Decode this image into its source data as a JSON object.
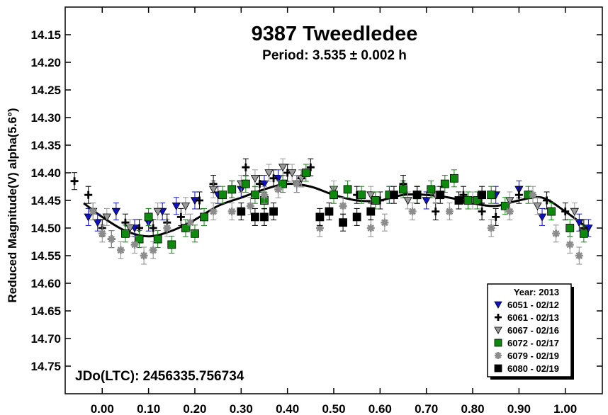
{
  "chart_data": {
    "type": "scatter",
    "title": "9387 Tweedledee",
    "subtitle": "Period: 3.535 ± 0.002 h",
    "xlabel": "",
    "ylabel": "Reduced Magnitude(V) alpha(5.6°)",
    "annotation": "JDo(LTC): 2456335.756734",
    "xlim": [
      -0.08,
      1.08
    ],
    "ylim": [
      14.8,
      14.1
    ],
    "y_inverted": true,
    "x_ticks": [
      "0.00",
      "0.10",
      "0.20",
      "0.30",
      "0.40",
      "0.50",
      "0.60",
      "0.70",
      "0.80",
      "0.90",
      "1.00"
    ],
    "y_ticks": [
      "14.15",
      "14.20",
      "14.25",
      "14.30",
      "14.35",
      "14.40",
      "14.45",
      "14.50",
      "14.55",
      "14.60",
      "14.65",
      "14.70",
      "14.75"
    ],
    "legend": {
      "title": "Year: 2013",
      "placement": "bottom-right",
      "entries": [
        {
          "label": "6051 - 02/12",
          "marker": "triangle",
          "color": "#1010c8"
        },
        {
          "label": "6061 - 02/13",
          "marker": "plus",
          "color": "#000000"
        },
        {
          "label": "6067 - 02/16",
          "marker": "triangle",
          "color": "#9a9a9a"
        },
        {
          "label": "6072 - 02/17",
          "marker": "square",
          "color": "#0d8a0d"
        },
        {
          "label": "6079 - 02/19",
          "marker": "asterisk",
          "color": "#8c8c8c"
        },
        {
          "label": "6080 - 02/19",
          "marker": "square",
          "color": "#000000"
        }
      ]
    },
    "fit_curve": {
      "x": [
        -0.04,
        0.0,
        0.05,
        0.1,
        0.15,
        0.2,
        0.25,
        0.3,
        0.35,
        0.4,
        0.45,
        0.5,
        0.55,
        0.6,
        0.65,
        0.7,
        0.75,
        0.8,
        0.85,
        0.9,
        0.95,
        1.0,
        1.04
      ],
      "y": [
        14.455,
        14.48,
        14.505,
        14.515,
        14.505,
        14.485,
        14.46,
        14.445,
        14.43,
        14.42,
        14.425,
        14.44,
        14.45,
        14.45,
        14.44,
        14.44,
        14.445,
        14.455,
        14.46,
        14.45,
        14.445,
        14.47,
        14.495
      ]
    },
    "series": [
      {
        "name": "6051 - 02/12",
        "x": [
          -0.03,
          -0.01,
          0.03,
          0.07,
          0.1,
          0.13,
          0.16,
          0.2,
          0.25,
          0.3,
          0.35,
          0.38,
          0.42,
          0.62,
          0.7,
          0.85,
          0.9,
          0.95,
          1.03,
          1.05
        ],
        "y": [
          14.48,
          14.49,
          14.47,
          14.5,
          14.49,
          14.47,
          14.46,
          14.45,
          14.44,
          14.43,
          14.42,
          14.41,
          14.42,
          14.44,
          14.45,
          14.44,
          14.43,
          14.48,
          14.49,
          14.5
        ]
      },
      {
        "name": "6061 - 02/13",
        "x": [
          -0.06,
          -0.03,
          0.0,
          0.02,
          0.05,
          0.08,
          0.11,
          0.14,
          0.17,
          0.21,
          0.24,
          0.28,
          0.31,
          0.34,
          0.37,
          0.4,
          0.43,
          0.45,
          0.55,
          0.6,
          0.65,
          0.68,
          0.72,
          0.78,
          0.82,
          0.85,
          0.9,
          0.96,
          1.0,
          1.04
        ],
        "y": [
          14.415,
          14.44,
          14.5,
          14.52,
          14.49,
          14.5,
          14.5,
          14.49,
          14.48,
          14.45,
          14.42,
          14.43,
          14.39,
          14.42,
          14.41,
          14.4,
          14.41,
          14.39,
          14.44,
          14.45,
          14.42,
          14.44,
          14.47,
          14.44,
          14.47,
          14.48,
          14.44,
          14.45,
          14.47,
          14.5
        ]
      },
      {
        "name": "6067 - 02/16",
        "x": [
          -0.02,
          0.01,
          0.06,
          0.12,
          0.18,
          0.24,
          0.3,
          0.33,
          0.36,
          0.39,
          0.41,
          0.43,
          0.5,
          0.58,
          0.66,
          0.72,
          0.8,
          0.88,
          0.94,
          1.02
        ],
        "y": [
          14.47,
          14.48,
          14.5,
          14.47,
          14.46,
          14.43,
          14.42,
          14.41,
          14.4,
          14.39,
          14.4,
          14.41,
          14.43,
          14.44,
          14.45,
          14.44,
          14.45,
          14.45,
          14.46,
          14.47
        ]
      },
      {
        "name": "6072 - 02/17",
        "x": [
          0.05,
          0.08,
          0.1,
          0.12,
          0.15,
          0.18,
          0.2,
          0.22,
          0.26,
          0.28,
          0.31,
          0.33,
          0.35,
          0.39,
          0.44,
          0.5,
          0.53,
          0.56,
          0.59,
          0.62,
          0.65,
          0.68,
          0.71,
          0.74,
          0.76,
          0.79,
          0.81,
          0.84,
          0.87,
          0.92,
          0.97,
          1.01,
          1.04
        ],
        "y": [
          14.51,
          14.52,
          14.48,
          14.52,
          14.53,
          14.5,
          14.51,
          14.48,
          14.44,
          14.43,
          14.42,
          14.44,
          14.45,
          14.42,
          14.4,
          14.44,
          14.43,
          14.44,
          14.45,
          14.44,
          14.43,
          14.44,
          14.43,
          14.42,
          14.41,
          14.45,
          14.45,
          14.44,
          14.46,
          14.44,
          14.47,
          14.5,
          14.51
        ]
      },
      {
        "name": "6079 - 02/19",
        "x": [
          -0.02,
          0.0,
          0.02,
          0.04,
          0.07,
          0.09,
          0.11,
          0.14,
          0.19,
          0.24,
          0.28,
          0.32,
          0.35,
          0.38,
          0.42,
          0.47,
          0.52,
          0.58,
          0.61,
          0.67,
          0.75,
          0.84,
          0.88,
          0.93,
          0.98,
          1.01,
          1.03
        ],
        "y": [
          14.47,
          14.51,
          14.52,
          14.54,
          14.53,
          14.55,
          14.54,
          14.5,
          14.49,
          14.47,
          14.47,
          14.46,
          14.44,
          14.43,
          14.42,
          14.5,
          14.46,
          14.5,
          14.49,
          14.47,
          14.47,
          14.5,
          14.47,
          14.44,
          14.51,
          14.53,
          14.55
        ]
      },
      {
        "name": "6080 - 02/19",
        "x": [
          0.3,
          0.33,
          0.35,
          0.37,
          0.47,
          0.49,
          0.52,
          0.55,
          0.58,
          0.63,
          0.68,
          0.73,
          0.77,
          0.82
        ],
        "y": [
          14.47,
          14.48,
          14.48,
          14.47,
          14.48,
          14.47,
          14.49,
          14.48,
          14.47,
          14.44,
          14.44,
          14.44,
          14.45,
          14.44
        ]
      }
    ]
  }
}
